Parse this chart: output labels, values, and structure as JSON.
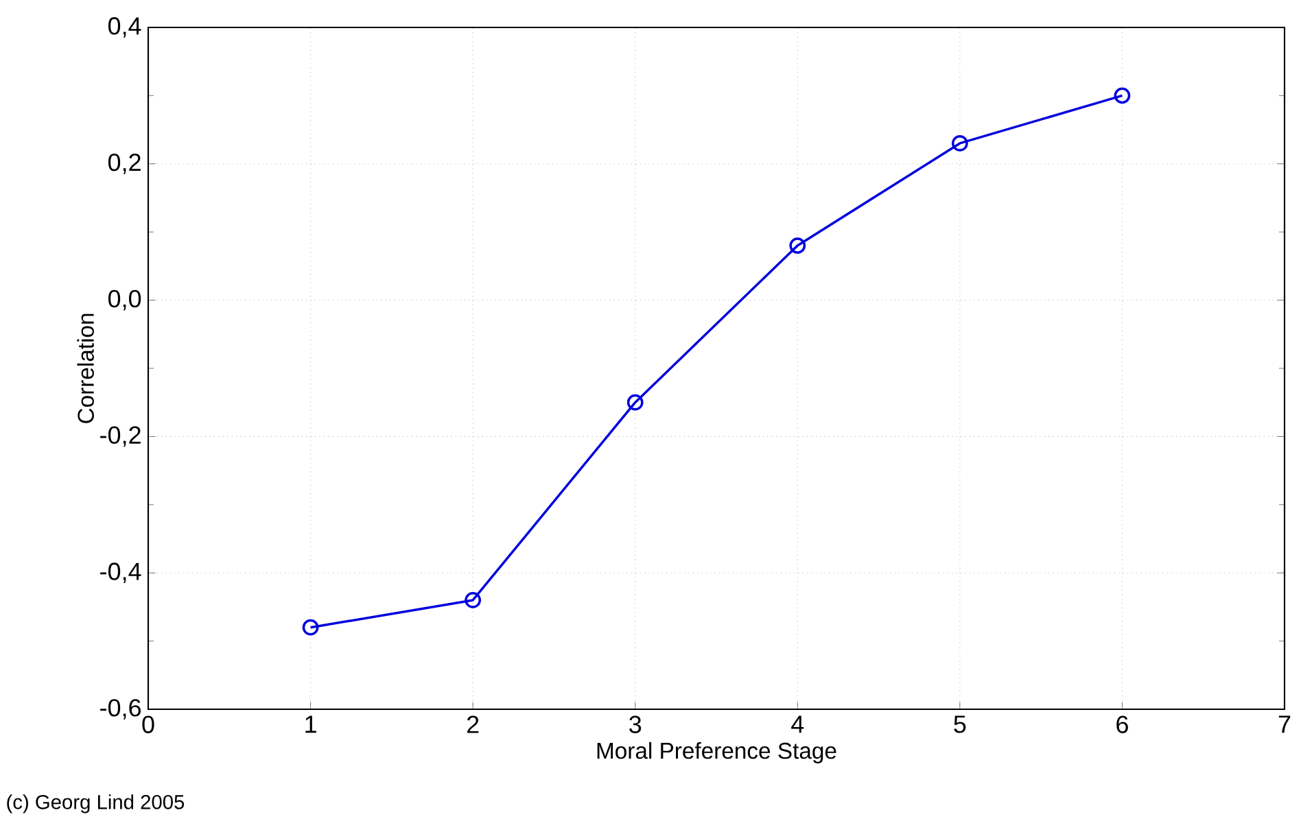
{
  "chart_data": {
    "type": "line",
    "xlabel": "Moral Preference Stage",
    "ylabel": "Correlation",
    "annotations": [
      "(c) Georg Lind 2005"
    ],
    "x": [
      1,
      2,
      3,
      4,
      5,
      6
    ],
    "series": [
      {
        "color": "#0000dd",
        "values": [
          -0.48,
          -0.44,
          -0.15,
          0.08,
          0.23,
          0.3
        ]
      }
    ],
    "xlim": [
      0,
      7
    ],
    "ylim": [
      -0.6,
      0.4
    ],
    "xticks": [
      0,
      1,
      2,
      3,
      4,
      5,
      6,
      7
    ],
    "yticks": [
      {
        "value": -0.6,
        "label": "-0,6"
      },
      {
        "value": -0.4,
        "label": "-0,4"
      },
      {
        "value": -0.2,
        "label": "-0,2"
      },
      {
        "value": 0.0,
        "label": "0,0"
      },
      {
        "value": 0.2,
        "label": "0,2"
      },
      {
        "value": 0.4,
        "label": "0,4"
      }
    ],
    "grid": true,
    "marker": "circle",
    "line_style": "solid"
  }
}
